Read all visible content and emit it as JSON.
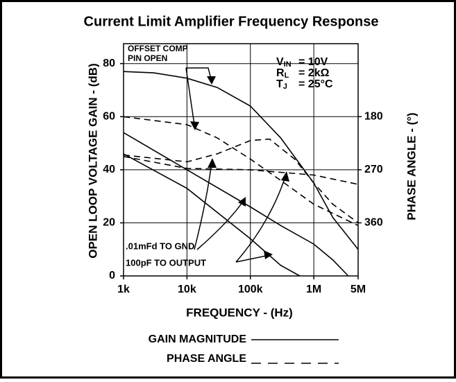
{
  "chart_data": {
    "type": "line",
    "title": "Current Limit Amplifier Frequency Response",
    "xlabel": "FREQUENCY - (Hz)",
    "ylabel": "OPEN LOOP VOLTAGE GAIN - (dB)",
    "y2label": "PHASE ANGLE - (°)",
    "xscale": "log",
    "xlim": [
      1000,
      5000000
    ],
    "xticks": [
      {
        "value": 1000,
        "label": "1k"
      },
      {
        "value": 10000,
        "label": "10k"
      },
      {
        "value": 100000,
        "label": "100k"
      },
      {
        "value": 1000000,
        "label": "1M"
      },
      {
        "value": 5000000,
        "label": "5M"
      }
    ],
    "ylim": [
      0,
      87.5
    ],
    "yticks": [
      0,
      20,
      40,
      60,
      80
    ],
    "y2lim": [
      450,
      56.25
    ],
    "y2ticks": [
      180,
      270,
      360
    ],
    "grid": true,
    "series": [
      {
        "color": "#000000",
        "style": "solid",
        "x": [
          1000,
          3000,
          10000,
          30000,
          100000,
          300000,
          1000000,
          2000000,
          5000000
        ],
        "values": [
          77,
          76.5,
          74.5,
          71,
          64,
          52,
          35,
          22,
          10
        ]
      },
      {
        "color": "#000000",
        "style": "solid",
        "x": [
          1000,
          10000,
          100000,
          300000,
          1000000,
          2000000,
          3500000
        ],
        "values": [
          54,
          40,
          26,
          19,
          12,
          6,
          0
        ]
      },
      {
        "color": "#000000",
        "style": "solid",
        "x": [
          1000,
          10000,
          100000,
          300000,
          600000
        ],
        "values": [
          46,
          33,
          14,
          4,
          0
        ]
      },
      {
        "color": "#000000",
        "style": "dashed",
        "axis": "y2",
        "x": [
          1000,
          10000,
          30000,
          100000,
          300000,
          1000000,
          5000000
        ],
        "values": [
          180,
          193.5,
          216,
          252,
          288,
          328.5,
          364.5
        ]
      },
      {
        "color": "#000000",
        "style": "dashed",
        "axis": "y2",
        "x": [
          1000,
          10000,
          30000,
          100000,
          200000,
          500000,
          1000000,
          2000000,
          5000000
        ],
        "values": [
          245,
          256.5,
          243,
          220.5,
          218,
          252,
          292.5,
          328.5,
          360
        ]
      },
      {
        "color": "#000000",
        "style": "dashed",
        "axis": "y2",
        "x": [
          1000,
          10000,
          100000,
          1000000,
          5000000
        ],
        "values": [
          247.5,
          267.75,
          270,
          279,
          294.75
        ]
      }
    ],
    "conditions": [
      {
        "symbol": "V",
        "sub": "IN",
        "value": "= 10V"
      },
      {
        "symbol": "R",
        "sub": "L",
        "value": "= 2kΩ"
      },
      {
        "symbol": "T",
        "sub": "J",
        "value": "= 25°C"
      }
    ],
    "annotations": [
      "OFFSET COMP",
      "PIN OPEN",
      ".01mFd TO GND",
      "100pF TO OUTPUT"
    ],
    "legend": [
      {
        "label": "GAIN MAGNITUDE",
        "style": "solid"
      },
      {
        "label": "PHASE ANGLE",
        "style": "dashed"
      }
    ]
  }
}
